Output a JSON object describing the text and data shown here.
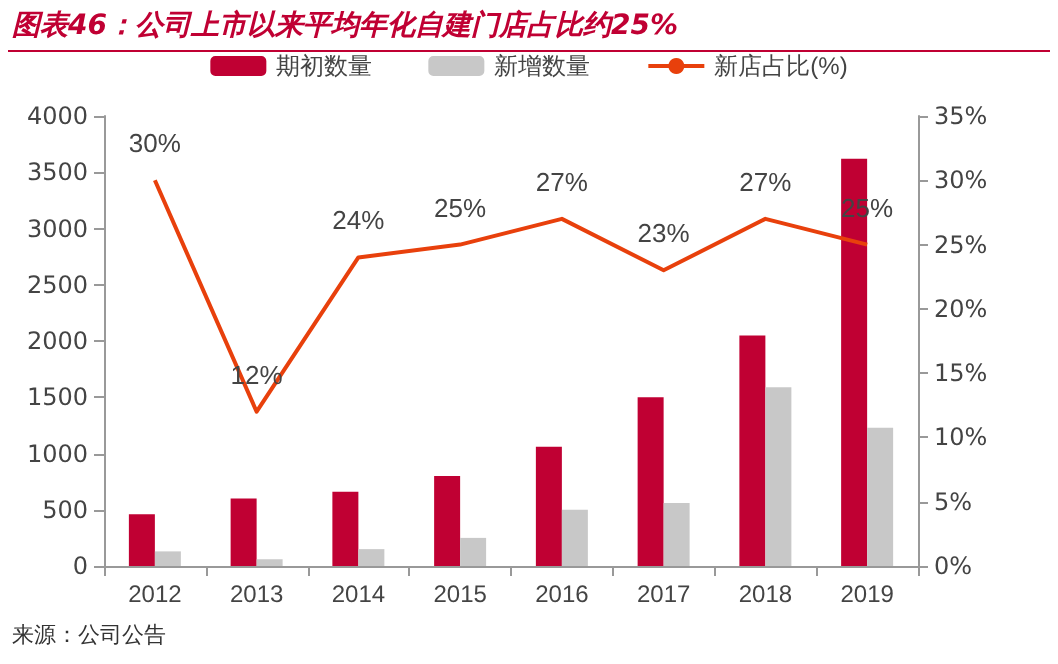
{
  "chart_data": {
    "type": "bar",
    "title": "图表46：公司上市以来平均年化自建门店占比约25%",
    "categories": [
      "2012",
      "2013",
      "2014",
      "2015",
      "2016",
      "2017",
      "2018",
      "2019"
    ],
    "series": [
      {
        "name": "期初数量",
        "color": "#c00033",
        "values": [
          460,
          600,
          660,
          800,
          1060,
          1500,
          2050,
          3620
        ]
      },
      {
        "name": "新增数量",
        "color": "#c8c8c8",
        "values": [
          130,
          60,
          150,
          250,
          500,
          560,
          1590,
          1230
        ]
      },
      {
        "name": "新店占比(%)",
        "type": "line",
        "axis": "y2",
        "color": "#e8400c",
        "values": [
          30,
          12,
          24,
          25,
          27,
          23,
          27,
          25
        ],
        "value_labels": [
          "30%",
          "12%",
          "24%",
          "25%",
          "27%",
          "23%",
          "27%",
          "25%"
        ]
      }
    ],
    "ylim": [
      0,
      4000
    ],
    "yticks": [
      0,
      500,
      1000,
      1500,
      2000,
      2500,
      3000,
      3500,
      4000
    ],
    "y2lim": [
      0,
      35
    ],
    "y2ticks": [
      {
        "value": 0,
        "label": "0%"
      },
      {
        "value": 5,
        "label": "5%"
      },
      {
        "value": 10,
        "label": "10%"
      },
      {
        "value": 15,
        "label": "15%"
      },
      {
        "value": 20,
        "label": "20%"
      },
      {
        "value": 25,
        "label": "25%"
      },
      {
        "value": 30,
        "label": "30%"
      },
      {
        "value": 35,
        "label": "35%"
      }
    ],
    "grid": false,
    "legend": "top",
    "marker": "none",
    "annotations": [
      "来源：公司公告"
    ]
  }
}
